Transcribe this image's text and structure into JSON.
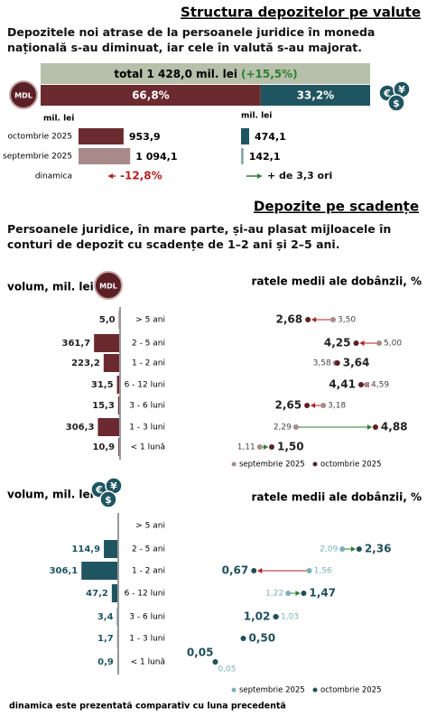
{
  "currency_structure": {
    "title": "Structura depozitelor pe valute",
    "text": "Depozitele noi atrase de la persoanele juridice în moneda națională s-au diminuat, iar cele în valută s-au majorat.",
    "total_label": "total 1 428,0 mil. lei",
    "total_change": "(+15,5%)",
    "total_color": "#b7c0aa",
    "change_color": "#2e7d32",
    "shares": {
      "values": [
        66.8,
        33.2
      ],
      "value_labels": [
        "66,8%",
        "33,2%"
      ],
      "colors": [
        "#6b2a2f",
        "#1f5560"
      ]
    },
    "mdl_badge": "MDL",
    "currency_symbols": [
      "€",
      "¥",
      "$"
    ],
    "unit": "mil. lei",
    "periods": [
      "octombrie 2025",
      "septembrie 2025"
    ],
    "dynamics_label": "dinamica",
    "mdl": {
      "values": [
        953.9,
        1094.1
      ],
      "value_labels": [
        "953,9",
        "1 094,1"
      ],
      "colors": [
        "#6b2a2f",
        "#a88a8a"
      ],
      "dynamics": "-12,8%",
      "dynamics_color": "#b22222"
    },
    "fx": {
      "values": [
        474.1,
        142.1
      ],
      "value_labels": [
        "474,1",
        "142,1"
      ],
      "colors": [
        "#1f5560",
        "#8aa8ae"
      ],
      "dynamics": "+ de 3,3 ori",
      "dynamics_color": "#2e7d32"
    }
  },
  "maturity": {
    "title": "Depozite pe scadențe",
    "text": "Persoanele juridice, în mare parte, și-au plasat mijloacele în conturi de depozit cu scadențe de 1–2 ani și 2–5 ani.",
    "categories": [
      "> 5 ani",
      "2 - 5 ani",
      "1 - 2 ani",
      "6 - 12 luni",
      "3 - 6 luni",
      "1 - 3 luni",
      "< 1 lună"
    ],
    "mdl": {
      "volume_title": "volum, mil. lei",
      "rate_title": "ratele medii ale dobânzii, %",
      "legend": [
        "septembrie 2025",
        "octombrie 2025"
      ],
      "volumes": [
        5.0,
        361.7,
        223.2,
        31.5,
        15.3,
        306.3,
        10.9
      ],
      "volume_labels": [
        "5,0",
        "361,7",
        "223,2",
        "31,5",
        "15,3",
        "306,3",
        "10,9"
      ],
      "rates_sep": [
        3.5,
        5.0,
        3.58,
        4.59,
        3.18,
        2.29,
        1.11
      ],
      "rates_sep_labels": [
        "3,50",
        "5,00",
        "3,58",
        "4,59",
        "3,18",
        "2,29",
        "1,11"
      ],
      "rates_oct": [
        2.68,
        4.25,
        3.64,
        4.41,
        2.65,
        4.88,
        1.5
      ],
      "rates_oct_labels": [
        "2,68",
        "4,25",
        "3,64",
        "4,41",
        "2,65",
        "4,88",
        "1,50"
      ],
      "bar_color": "#6b2a2f",
      "sep_color": "#a88a8a",
      "oct_color": "#5b2026"
    },
    "fx": {
      "volume_title": "volum, mil. lei",
      "rate_title": "ratele medii ale dobânzii, %",
      "legend": [
        "septembrie 2025",
        "octombrie 2025"
      ],
      "volumes": [
        null,
        114.9,
        306.1,
        47.2,
        3.4,
        1.7,
        0.9
      ],
      "volume_labels": [
        null,
        "114,9",
        "306,1",
        "47,2",
        "3,4",
        "1,7",
        "0,9"
      ],
      "rates_sep": [
        null,
        2.09,
        1.56,
        1.22,
        1.03,
        null,
        0.05
      ],
      "rates_sep_labels": [
        null,
        "2,09",
        "1,56",
        "1,22",
        "1,03",
        null,
        "0,05"
      ],
      "rates_oct": [
        null,
        2.36,
        0.67,
        1.47,
        1.02,
        0.5,
        0.05
      ],
      "rates_oct_labels": [
        null,
        "2,36",
        "0,67",
        "1,47",
        "1,02",
        "0,50",
        "0,05"
      ],
      "bar_color": "#1f5560",
      "sep_color": "#7ab0b8",
      "oct_color": "#1f4f5a"
    }
  },
  "footer": "dinamica este prezentată comparativ cu luna precedentă"
}
